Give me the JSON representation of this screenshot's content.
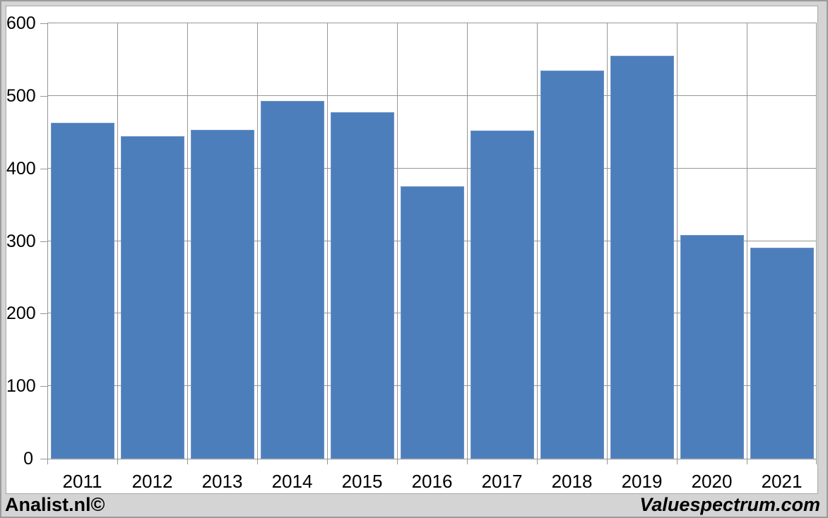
{
  "branding": {
    "left_label": "Analist.nl©",
    "right_label": "Valuespectrum.com"
  },
  "chart_data": {
    "type": "bar",
    "title": "",
    "xlabel": "",
    "ylabel": "",
    "categories": [
      "2011",
      "2012",
      "2013",
      "2014",
      "2015",
      "2016",
      "2017",
      "2018",
      "2019",
      "2020",
      "2021"
    ],
    "values": [
      463,
      444,
      453,
      493,
      477,
      375,
      452,
      535,
      555,
      308,
      291
    ],
    "ylim": [
      0,
      600
    ],
    "yticks": [
      0,
      100,
      200,
      300,
      400,
      500,
      600
    ],
    "grid": true,
    "legend": false,
    "colors": {
      "bar_fill": "#4d7ebc",
      "bar_edge": "#6b94c6",
      "gridline": "#969696",
      "axis_text": "#000000",
      "chart_background": "#ffffff",
      "outer_background": "#d4d4d4",
      "frame_border": "#9b9b9b"
    }
  }
}
